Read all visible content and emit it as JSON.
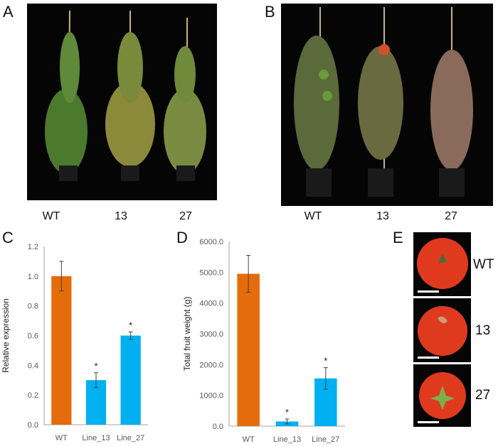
{
  "panels": {
    "A": {
      "letter": "A",
      "labels": [
        "WT",
        "13",
        "27"
      ]
    },
    "B": {
      "letter": "B",
      "labels": [
        "WT",
        "13",
        "27"
      ]
    },
    "C": {
      "letter": "C"
    },
    "D": {
      "letter": "D"
    },
    "E": {
      "letter": "E",
      "labels": [
        "WT",
        "13",
        "27"
      ]
    }
  },
  "colors": {
    "wt": "#E46C0A",
    "lines": "#00B0F0",
    "axis": "#A6A6A6",
    "text": "#595959"
  },
  "chart_data": [
    {
      "type": "bar",
      "panel": "C",
      "categories": [
        "WT",
        "Line_13",
        "Line_27"
      ],
      "values": [
        1.0,
        0.3,
        0.6
      ],
      "errors": [
        0.1,
        0.05,
        0.025
      ],
      "significance": [
        "",
        "*",
        "*"
      ],
      "ylabel": "Relative expression",
      "ylim": [
        0,
        1.2
      ],
      "yticks": [
        "0.0",
        "0.2",
        "0.4",
        "0.6",
        "0.8",
        "1.0",
        "1.2"
      ],
      "grid": false
    },
    {
      "type": "bar",
      "panel": "D",
      "categories": [
        "WT",
        "Line_13",
        "Line_27"
      ],
      "values": [
        4950,
        150,
        1550
      ],
      "errors": [
        600,
        80,
        350
      ],
      "significance": [
        "",
        "*",
        "*"
      ],
      "ylabel": "Total fruit weight (g)",
      "ylim": [
        0,
        6000
      ],
      "yticks": [
        "0.0",
        "1000.0",
        "2000.0",
        "3000.0",
        "4000.0",
        "5000.0",
        "6000.0"
      ],
      "grid": false
    }
  ]
}
